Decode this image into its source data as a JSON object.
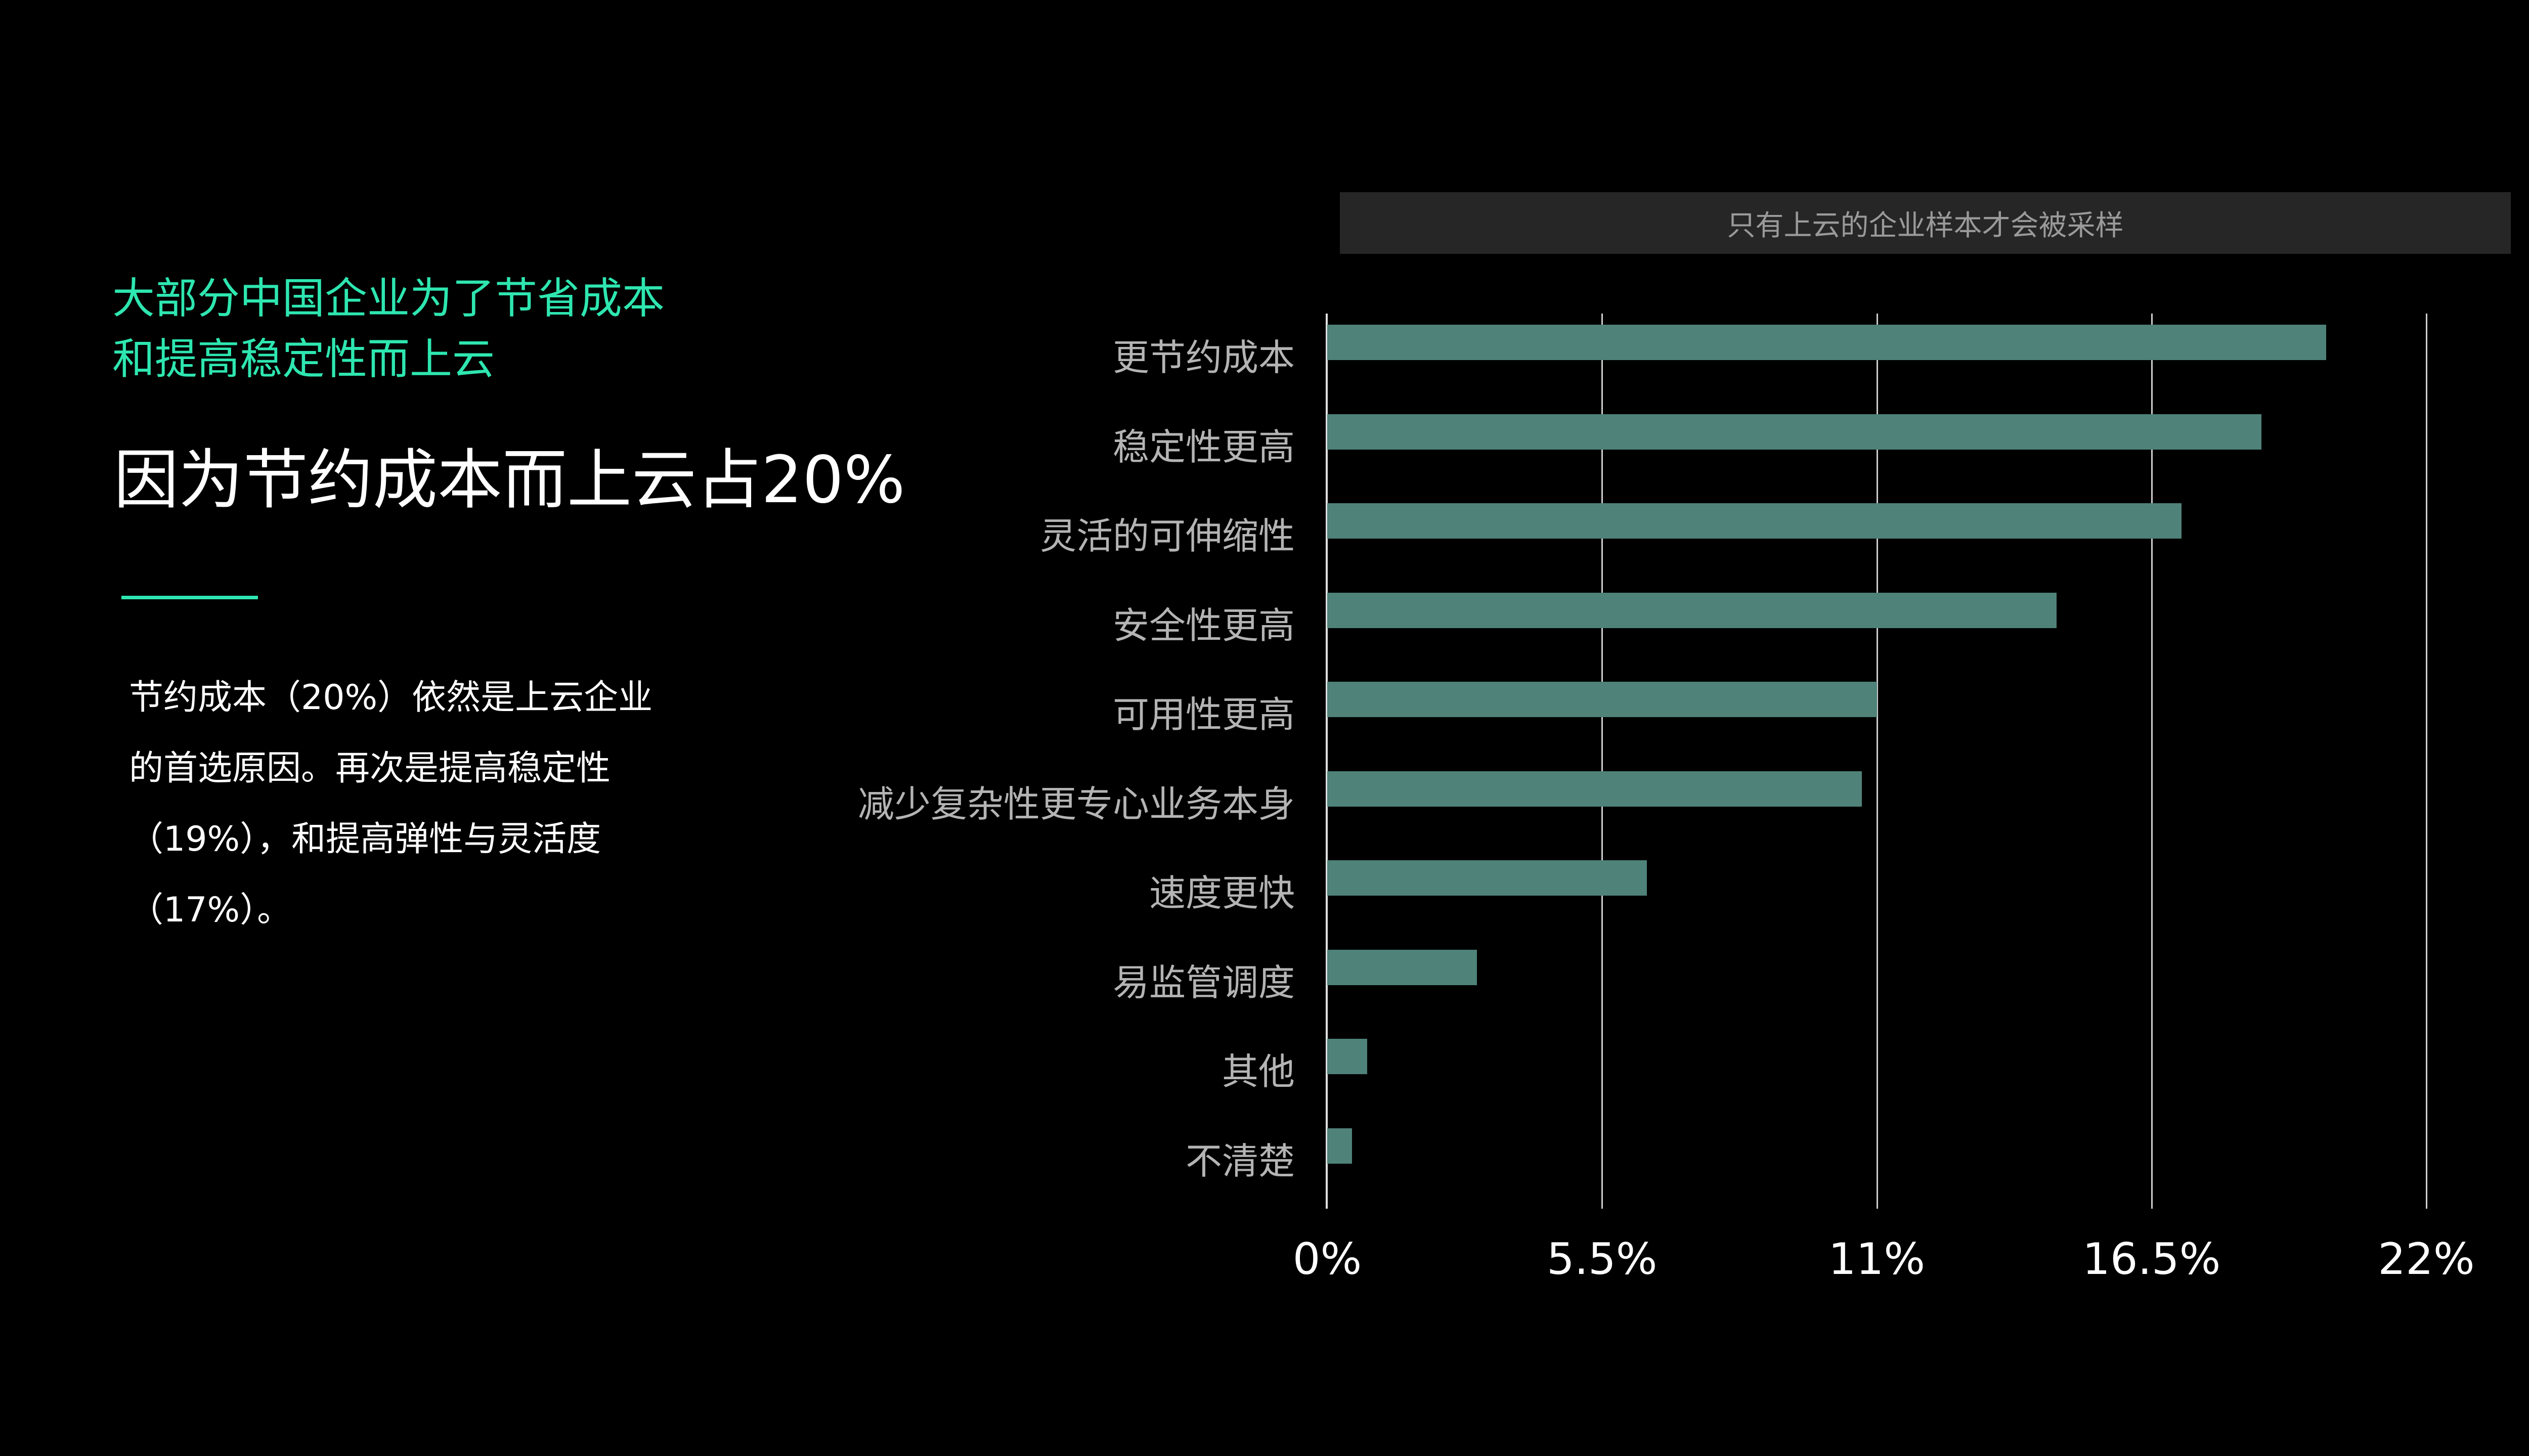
{
  "left": {
    "headline_lines": [
      "大部分中国企业为了节省成本",
      "和提高稳定性而上云"
    ],
    "big_statement": "因为节约成本而上云占20%",
    "paragraph": "节约成本（20%）依然是上云企业的首选原因。再次是提高稳定性（19%），和提高弹性与灵活度（17%）。",
    "accent_color": "#2ee6b0"
  },
  "chart_note": "只有上云的企业样本才会被采样",
  "chart_data": {
    "type": "bar",
    "orientation": "horizontal",
    "title": "",
    "note": "只有上云的企业样本才会被采样",
    "categories": [
      "更节约成本",
      "稳定性更高",
      "灵活的可伸缩性",
      "安全性更高",
      "可用性更高",
      "减少复杂性更专心业务本身",
      "速度更快",
      "易监管调度",
      "其他",
      "不清楚"
    ],
    "values": [
      20.0,
      18.7,
      17.1,
      14.6,
      11.0,
      10.7,
      6.4,
      3.0,
      0.8,
      0.5
    ],
    "unit": "%",
    "xlim": [
      0,
      22
    ],
    "xticks": [
      "0%",
      "5.5%",
      "11%",
      "16.5%",
      "22%"
    ],
    "xlabel": "",
    "ylabel": "",
    "grid": true,
    "bar_color": "#4f8279",
    "legend": null
  }
}
